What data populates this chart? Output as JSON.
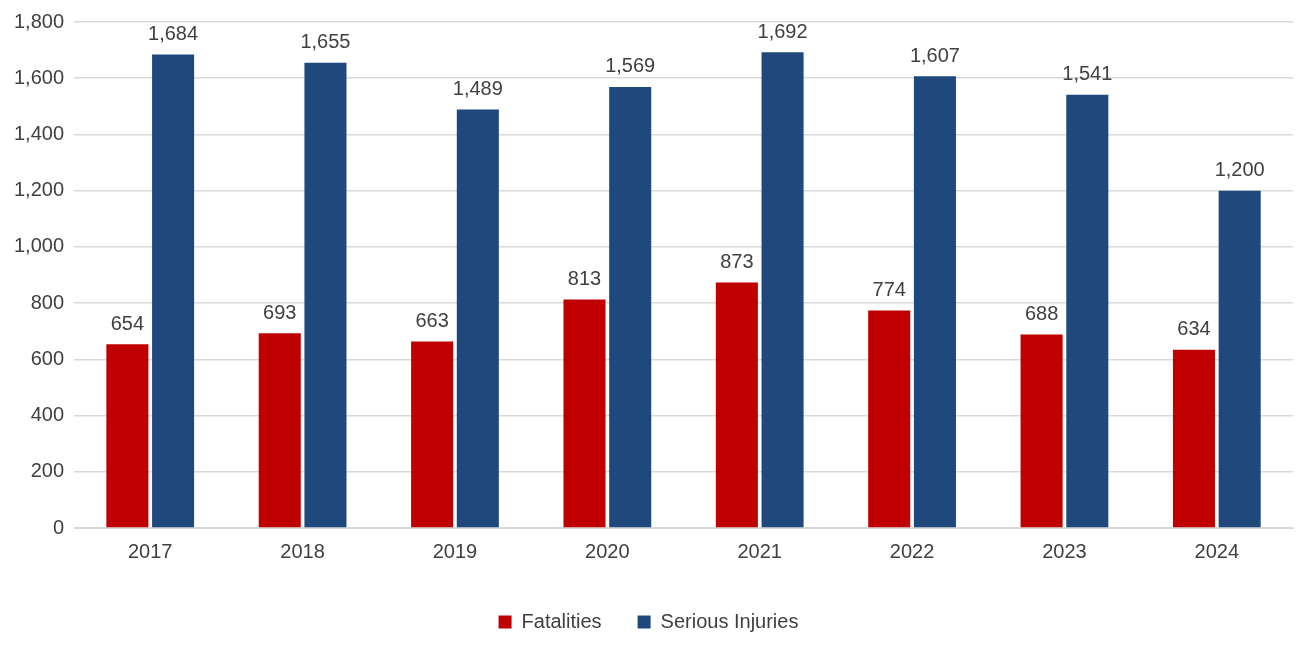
{
  "chart_data": {
    "type": "bar",
    "categories": [
      "2017",
      "2018",
      "2019",
      "2020",
      "2021",
      "2022",
      "2023",
      "2024"
    ],
    "series": [
      {
        "name": "Fatalities",
        "color": "#c00000",
        "values": [
          654,
          693,
          663,
          813,
          873,
          774,
          688,
          634
        ]
      },
      {
        "name": "Serious Injuries",
        "color": "#1f497d",
        "values": [
          1684,
          1655,
          1489,
          1569,
          1692,
          1607,
          1541,
          1200
        ],
        "value_labels": [
          "1,684",
          "1,655",
          "1,489",
          "1,569",
          "1,692",
          "1,607",
          "1,541",
          "1,200"
        ]
      }
    ],
    "ylim": [
      0,
      1800
    ],
    "yticks": [
      0,
      200,
      400,
      600,
      800,
      {
        "value": 1000,
        "label": "1,000"
      },
      {
        "value": 1200,
        "label": "1,200"
      },
      {
        "value": 1400,
        "label": "1,400"
      },
      {
        "value": 1600,
        "label": "1,600"
      },
      {
        "value": 1800,
        "label": "1,800"
      }
    ],
    "grid": "y",
    "legend": "bottom",
    "data_labels": true
  }
}
